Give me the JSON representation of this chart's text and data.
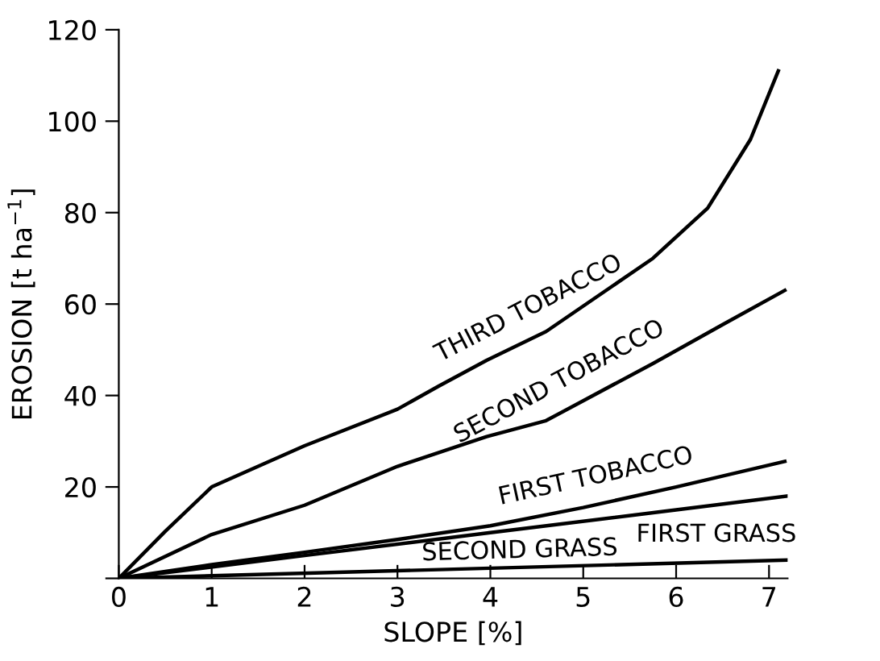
{
  "chart_data": {
    "type": "line",
    "xlabel": "SLOPE [%]",
    "ylabel": "EROSION [t ha$^{−1}$]",
    "xlim": [
      0,
      7.2
    ],
    "ylim": [
      0,
      120
    ],
    "xticks": [
      0,
      1,
      2,
      3,
      4,
      5,
      6,
      7
    ],
    "yticks": [
      {
        "value": 0,
        "label": null
      },
      20,
      40,
      60,
      80,
      100,
      120
    ],
    "grid": false,
    "legend": false,
    "marker": "none",
    "line_style": "solid",
    "series": [
      {
        "name": "THIRD TOBACCO",
        "color": "#000000",
        "x": [
          0,
          0.5,
          1,
          2,
          3,
          3.44,
          3.96,
          4.6,
          5.75,
          6.34,
          6.8,
          7.1
        ],
        "values": [
          0,
          10.3,
          20,
          29,
          37,
          42,
          47.7,
          54,
          70,
          81,
          96,
          111
        ]
      },
      {
        "name": "SECOND TOBACCO",
        "color": "#000000",
        "x": [
          0,
          1,
          2,
          3,
          3.44,
          3.96,
          4.6,
          5.75,
          6.5,
          7.17
        ],
        "values": [
          0,
          9.6,
          16,
          24.5,
          27.5,
          31,
          34.5,
          47,
          55.5,
          63
        ]
      },
      {
        "name": "FIRST TOBACCO",
        "color": "#000000",
        "x": [
          0,
          0.5,
          1,
          2,
          3,
          4,
          5,
          6,
          7.17
        ],
        "values": [
          0,
          1.5,
          3,
          5.7,
          8.5,
          11.5,
          15.5,
          20,
          25.6
        ]
      },
      {
        "name": "FIRST GRASS",
        "color": "#000000",
        "x": [
          0,
          2,
          4,
          6,
          7.2
        ],
        "values": [
          0,
          5,
          10,
          15,
          18
        ]
      },
      {
        "name": "SECOND GRASS",
        "color": "#000000",
        "x": [
          0,
          7.2
        ],
        "values": [
          0,
          4
        ]
      }
    ]
  }
}
